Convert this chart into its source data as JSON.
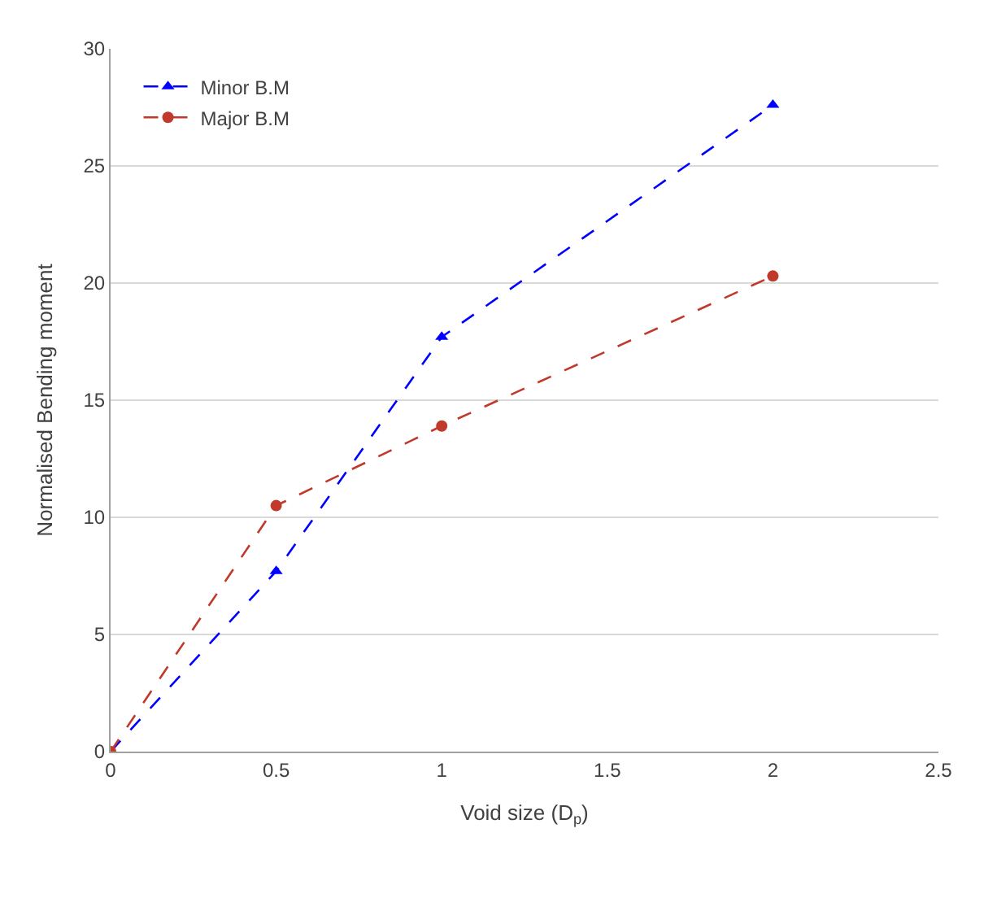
{
  "chart_data": {
    "type": "line",
    "xlabel": "Void size (D$_{p}$)",
    "ylabel": "Normalised Bending moment",
    "x": [
      0,
      0.5,
      1,
      2
    ],
    "series": [
      {
        "name": "Minor B.M",
        "color": "#0000ff",
        "marker": "triangle",
        "values": [
          0,
          7.7,
          17.7,
          27.6
        ]
      },
      {
        "name": "Major B.M",
        "color": "#c0392b",
        "marker": "circle",
        "values": [
          0,
          10.5,
          13.9,
          20.3
        ]
      }
    ],
    "xlim": [
      0,
      2.5
    ],
    "xticks": [
      0,
      0.5,
      1,
      1.5,
      2,
      2.5
    ],
    "ylim": [
      0,
      30
    ],
    "yticks": [
      0,
      5,
      10,
      15,
      20,
      25,
      30
    ],
    "grid": "y",
    "legend": "top left",
    "line_style": "dashed"
  }
}
